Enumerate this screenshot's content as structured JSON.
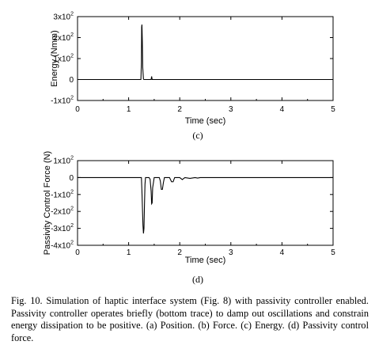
{
  "chart_data": [
    {
      "type": "line",
      "subfigure_label": "(c)",
      "xlabel": "Time (sec)",
      "ylabel": "Energy (Nmm)",
      "xlim": [
        0,
        5
      ],
      "ylim": [
        -100,
        300
      ],
      "x_ticks": [
        0,
        1,
        2,
        3,
        4,
        5
      ],
      "y_ticks": [
        {
          "value": 300,
          "base": "3x10",
          "exp": "2"
        },
        {
          "value": 200,
          "base": "2x10",
          "exp": "2"
        },
        {
          "value": 100,
          "base": "1x10",
          "exp": "2"
        },
        {
          "value": 0,
          "base": "0",
          "exp": ""
        },
        {
          "value": -100,
          "base": "-1x10",
          "exp": "2"
        }
      ],
      "series": [
        {
          "x": [
            0,
            1.24,
            1.25,
            1.255,
            1.26,
            1.268,
            1.275,
            1.29,
            1.3,
            1.44,
            1.45,
            1.46,
            5
          ],
          "y": [
            0,
            0,
            80,
            250,
            262,
            180,
            60,
            2,
            0,
            0,
            15,
            0,
            0
          ]
        }
      ],
      "grid": false
    },
    {
      "type": "line",
      "subfigure_label": "(d)",
      "xlabel": "Time (sec)",
      "ylabel": "Passivity Control Force (N)",
      "xlim": [
        0,
        5
      ],
      "ylim": [
        -400,
        100
      ],
      "x_ticks": [
        0,
        1,
        2,
        3,
        4,
        5
      ],
      "y_ticks": [
        {
          "value": 100,
          "base": "1x10",
          "exp": "2"
        },
        {
          "value": 0,
          "base": "0",
          "exp": ""
        },
        {
          "value": -100,
          "base": "-1x10",
          "exp": "2"
        },
        {
          "value": -200,
          "base": "-2x10",
          "exp": "2"
        },
        {
          "value": -300,
          "base": "-3x10",
          "exp": "2"
        },
        {
          "value": -400,
          "base": "-4x10",
          "exp": "2"
        }
      ],
      "series": [
        {
          "x": [
            0,
            1.25,
            1.26,
            1.27,
            1.28,
            1.29,
            1.3,
            1.31,
            1.32,
            1.33,
            1.4,
            1.42,
            1.44,
            1.45,
            1.46,
            1.47,
            1.5,
            1.55,
            1.6,
            1.62,
            1.64,
            1.66,
            1.68,
            1.7,
            1.75,
            1.8,
            1.84,
            1.87,
            1.9,
            1.95,
            2.0,
            2.05,
            2.1,
            2.2,
            2.3,
            2.35,
            2.4,
            5
          ],
          "y": [
            0,
            0,
            -80,
            -180,
            -280,
            -330,
            -300,
            -160,
            -40,
            0,
            0,
            -10,
            -80,
            -155,
            -150,
            -60,
            0,
            0,
            0,
            -20,
            -70,
            -70,
            -30,
            0,
            0,
            0,
            -25,
            -25,
            0,
            0,
            0,
            -12,
            0,
            -5,
            0,
            -3,
            0,
            0
          ]
        }
      ],
      "grid": false
    }
  ],
  "caption": {
    "text": "Fig. 10. Simulation of haptic interface system (Fig. 8) with passivity controller enabled. Passivity controller operates briefly (bottom trace) to damp out oscillations and constrain energy dissipation to be positive. (a) Position. (b) Force. (c) Energy. (d) Passivity control force."
  }
}
